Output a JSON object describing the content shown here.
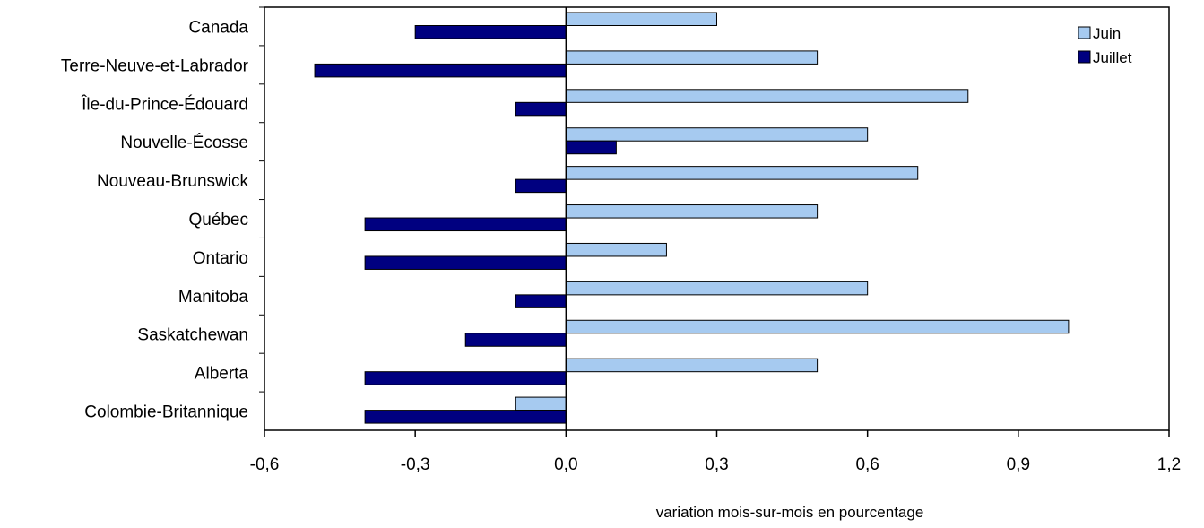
{
  "chart_data": {
    "type": "bar",
    "orientation": "horizontal",
    "categories": [
      "Canada",
      "Terre-Neuve-et-Labrador",
      "Île-du-Prince-Édouard",
      "Nouvelle-Écosse",
      "Nouveau-Brunswick",
      "Québec",
      "Ontario",
      "Manitoba",
      "Saskatchewan",
      "Alberta",
      "Colombie-Britannique"
    ],
    "series": [
      {
        "name": "Juin",
        "color": "#a6caf0",
        "values": [
          0.3,
          0.5,
          0.8,
          0.6,
          0.7,
          0.5,
          0.2,
          0.6,
          1.0,
          0.5,
          -0.1
        ]
      },
      {
        "name": "Juillet",
        "color": "#000080",
        "values": [
          -0.3,
          -0.5,
          -0.1,
          0.1,
          -0.1,
          -0.4,
          -0.4,
          -0.1,
          -0.2,
          -0.4,
          -0.4
        ]
      }
    ],
    "x_ticks": [
      "-0,6",
      "-0,3",
      "0,0",
      "0,3",
      "0,6",
      "0,9",
      "1,2"
    ],
    "xlim": [
      -0.6,
      1.2
    ],
    "xlabel": "variation mois-sur-mois en pourcentage",
    "ylabel": "",
    "title": "",
    "grid": false,
    "legend_position": "top-right"
  }
}
